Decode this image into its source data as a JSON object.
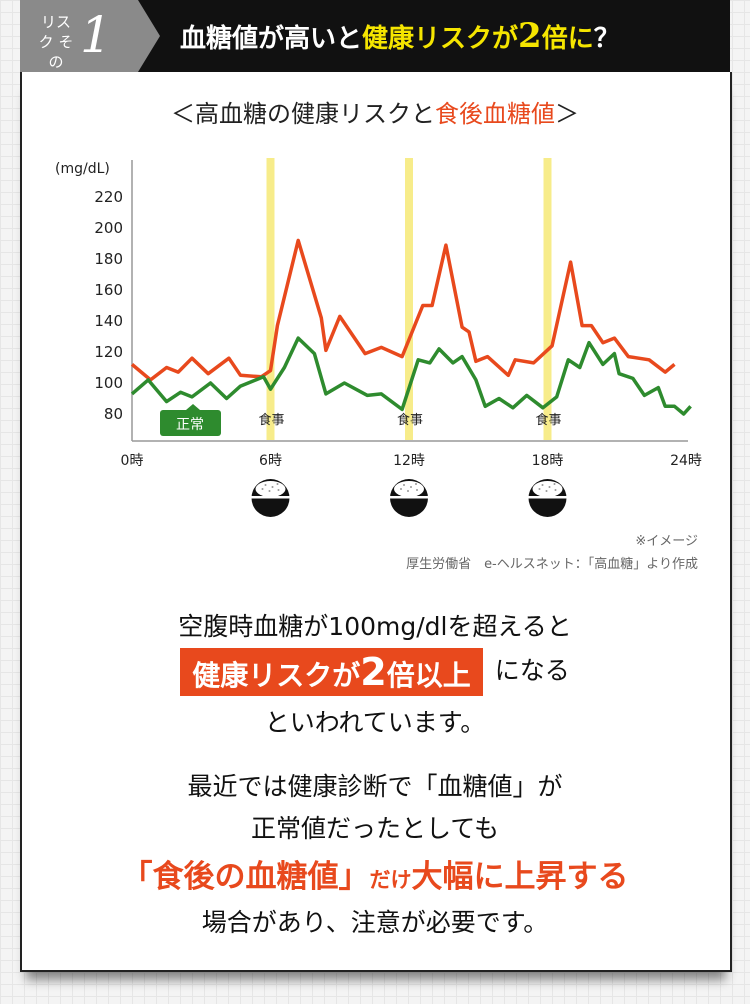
{
  "header": {
    "tab_small": "リスク その",
    "tab_number": "1",
    "title_part1": "血糖値が高いと",
    "title_part2": "健康リスクが",
    "title_num": "2",
    "title_part3": "倍に",
    "title_part4": "？"
  },
  "chart_title": {
    "prefix": "＜高血糖の健康リスクと",
    "highlight": "食後血糖値",
    "suffix": "＞"
  },
  "chart_data": {
    "type": "line",
    "ylabel": "(mg/dL)",
    "y_ticks": [
      80,
      100,
      120,
      140,
      160,
      180,
      200,
      220
    ],
    "x_ticks": [
      "0時",
      "6時",
      "12時",
      "18時",
      "24時"
    ],
    "meal_label": "食事",
    "normal_label": "正常",
    "meal_hours": [
      6,
      12,
      18
    ],
    "series": [
      {
        "color": "#e8491d",
        "points": [
          [
            0,
            112
          ],
          [
            0.8,
            102
          ],
          [
            1.5,
            110
          ],
          [
            2,
            107
          ],
          [
            2.6,
            116
          ],
          [
            3.3,
            106
          ],
          [
            4.2,
            116
          ],
          [
            4.7,
            105
          ],
          [
            5.6,
            104
          ],
          [
            6,
            108
          ],
          [
            6.3,
            137
          ],
          [
            7.2,
            192
          ],
          [
            8.2,
            142
          ],
          [
            8.4,
            121
          ],
          [
            9,
            143
          ],
          [
            10.1,
            119
          ],
          [
            10.8,
            123
          ],
          [
            11.7,
            117
          ],
          [
            12.6,
            150
          ],
          [
            13,
            150
          ],
          [
            13.6,
            189
          ],
          [
            14.3,
            136
          ],
          [
            14.6,
            133
          ],
          [
            14.9,
            114
          ],
          [
            15.4,
            117
          ],
          [
            16.3,
            105
          ],
          [
            16.6,
            115
          ],
          [
            17.4,
            113
          ],
          [
            18.2,
            124
          ],
          [
            19,
            178
          ],
          [
            19.5,
            137
          ],
          [
            19.9,
            137
          ],
          [
            20.4,
            126
          ],
          [
            20.9,
            129
          ],
          [
            21.5,
            117
          ],
          [
            22.4,
            115
          ],
          [
            23.1,
            107
          ],
          [
            23.5,
            112
          ]
        ]
      },
      {
        "color": "#2e8b2e",
        "points": [
          [
            0,
            93
          ],
          [
            0.7,
            102
          ],
          [
            1.5,
            88
          ],
          [
            2.1,
            94
          ],
          [
            2.6,
            91
          ],
          [
            3.4,
            100
          ],
          [
            4.1,
            90
          ],
          [
            4.7,
            98
          ],
          [
            5.7,
            104
          ],
          [
            6,
            96
          ],
          [
            6.6,
            110
          ],
          [
            7.2,
            129
          ],
          [
            7.9,
            119
          ],
          [
            8.4,
            93
          ],
          [
            9.2,
            100
          ],
          [
            10.2,
            92
          ],
          [
            10.8,
            93
          ],
          [
            11.7,
            83
          ],
          [
            12.4,
            115
          ],
          [
            12.9,
            113
          ],
          [
            13.3,
            122
          ],
          [
            13.9,
            113
          ],
          [
            14.3,
            117
          ],
          [
            14.9,
            102
          ],
          [
            15.3,
            85
          ],
          [
            15.9,
            90
          ],
          [
            16.5,
            84
          ],
          [
            17.1,
            92
          ],
          [
            17.8,
            84
          ],
          [
            18.4,
            91
          ],
          [
            18.9,
            115
          ],
          [
            19.4,
            110
          ],
          [
            19.8,
            126
          ],
          [
            20.4,
            112
          ],
          [
            20.9,
            119
          ],
          [
            21.1,
            106
          ],
          [
            21.7,
            103
          ],
          [
            22.2,
            92
          ],
          [
            22.8,
            97
          ],
          [
            23.1,
            85
          ],
          [
            23.5,
            85
          ],
          [
            23.9,
            80
          ],
          [
            24.2,
            85
          ]
        ]
      }
    ]
  },
  "source": {
    "note": "※イメージ",
    "credit": "厚生労働省　e-ヘルスネット：「高血糖」より作成"
  },
  "message": {
    "line1": "空腹時血糖が100mg/dlを超えると",
    "highlight_a": "健康リスクが",
    "highlight_num": "2",
    "highlight_b": "倍以上",
    "line2_suffix": "になる",
    "line3": "といわれています。",
    "line4": "最近では健康診断で「血糖値」が",
    "line5": "正常値だったとしても",
    "line6a": "「食後の血糖値」",
    "line6b": "だけ",
    "line6c": "大幅に上昇する",
    "line7": "場合があり、注意が必要です。"
  }
}
